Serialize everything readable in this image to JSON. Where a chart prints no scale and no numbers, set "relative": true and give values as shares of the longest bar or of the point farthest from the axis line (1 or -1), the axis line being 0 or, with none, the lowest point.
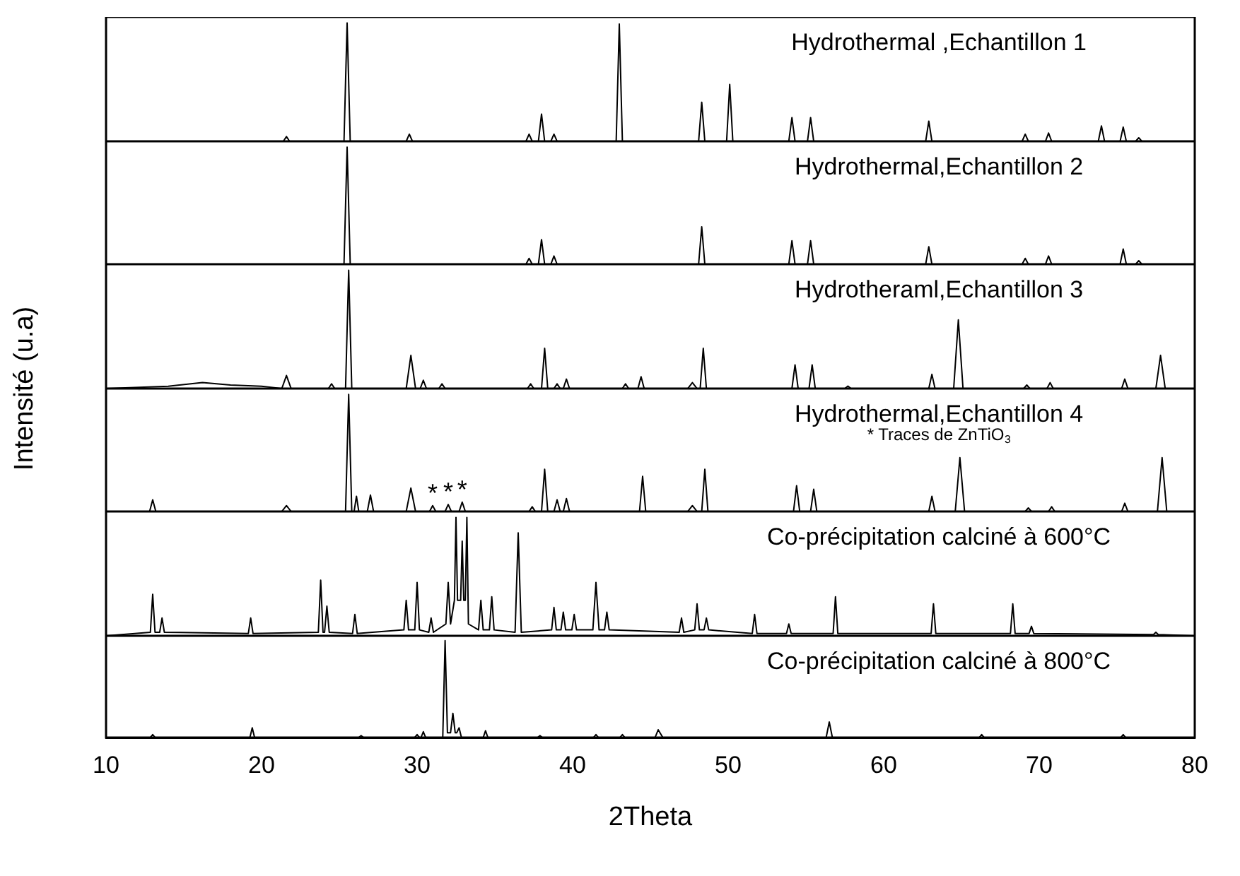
{
  "chart_data": [
    {
      "type": "line",
      "relative": true,
      "color": "#000000",
      "xlim": [
        10,
        80
      ],
      "tick_labels": false,
      "annotations": [
        "Hydrothermal ,Echantillon 1"
      ],
      "x": [
        10,
        21.4,
        21.6,
        21.8,
        25.3,
        25.5,
        25.7,
        29.3,
        29.5,
        29.7,
        37.0,
        37.2,
        37.4,
        37.8,
        38.0,
        38.2,
        38.6,
        38.8,
        39.0,
        42.8,
        43.0,
        43.2,
        48.1,
        48.3,
        48.5,
        49.9,
        50.1,
        50.3,
        53.9,
        54.1,
        54.3,
        55.1,
        55.3,
        55.5,
        62.7,
        62.9,
        63.1,
        68.9,
        69.1,
        69.3,
        70.4,
        70.6,
        70.8,
        73.8,
        74.0,
        74.2,
        75.2,
        75.4,
        75.6,
        76.2,
        76.4,
        76.6,
        80
      ],
      "values": [
        0,
        0,
        0.04,
        0,
        0,
        1,
        0,
        0,
        0.06,
        0,
        0,
        0.06,
        0,
        0,
        0.23,
        0,
        0,
        0.06,
        0,
        0,
        0.99,
        0,
        0,
        0.33,
        0,
        0,
        0.48,
        0,
        0,
        0.2,
        0,
        0,
        0.2,
        0,
        0,
        0.17,
        0,
        0,
        0.06,
        0,
        0,
        0.07,
        0,
        0,
        0.13,
        0,
        0,
        0.12,
        0,
        0,
        0.03,
        0,
        0
      ]
    },
    {
      "type": "line",
      "relative": true,
      "color": "#000000",
      "xlim": [
        10,
        80
      ],
      "tick_labels": false,
      "annotations": [
        "Hydrothermal,Echantillon 2"
      ],
      "x": [
        10,
        25.3,
        25.5,
        25.7,
        37.0,
        37.2,
        37.4,
        37.8,
        38.0,
        38.2,
        38.6,
        38.8,
        39.0,
        48.1,
        48.3,
        48.5,
        53.9,
        54.1,
        54.3,
        55.1,
        55.3,
        55.5,
        62.7,
        62.9,
        63.1,
        68.9,
        69.1,
        69.3,
        70.4,
        70.6,
        70.8,
        75.2,
        75.4,
        75.6,
        76.2,
        76.4,
        76.6,
        80
      ],
      "values": [
        0,
        0,
        1,
        0,
        0,
        0.05,
        0,
        0,
        0.21,
        0,
        0,
        0.07,
        0,
        0,
        0.32,
        0,
        0,
        0.2,
        0,
        0,
        0.2,
        0,
        0,
        0.15,
        0,
        0,
        0.05,
        0,
        0,
        0.07,
        0,
        0,
        0.13,
        0,
        0,
        0.03,
        0,
        0
      ]
    },
    {
      "type": "line",
      "relative": true,
      "color": "#000000",
      "xlim": [
        10,
        80
      ],
      "tick_labels": false,
      "ylabel": "Intensité (u.a)",
      "annotations": [
        "Hydrotheraml,Echantillon 3"
      ],
      "x": [
        10,
        14,
        16.2,
        18,
        20,
        21.3,
        21.6,
        21.9,
        24.3,
        24.5,
        24.7,
        25.4,
        25.6,
        25.8,
        29.3,
        29.6,
        29.9,
        30.2,
        30.4,
        30.6,
        31.4,
        31.6,
        31.8,
        37.1,
        37.3,
        37.5,
        38.0,
        38.2,
        38.4,
        38.8,
        39.0,
        39.2,
        39.4,
        39.6,
        39.8,
        43.2,
        43.4,
        43.6,
        44.2,
        44.4,
        44.6,
        47.4,
        47.7,
        48.0,
        48.2,
        48.4,
        48.6,
        54.1,
        54.3,
        54.5,
        55.2,
        55.4,
        55.6,
        57.5,
        57.7,
        57.9,
        62.9,
        63.1,
        63.3,
        64.5,
        64.8,
        65.1,
        69.0,
        69.2,
        69.4,
        70.5,
        70.7,
        70.9,
        75.3,
        75.5,
        75.7,
        77.5,
        77.8,
        78.1,
        80
      ],
      "values": [
        0,
        0.02,
        0.05,
        0.03,
        0.02,
        0,
        0.11,
        0,
        0,
        0.04,
        0,
        0,
        1,
        0,
        0,
        0.28,
        0,
        0,
        0.07,
        0,
        0,
        0.04,
        0,
        0,
        0.04,
        0,
        0,
        0.34,
        0,
        0,
        0.04,
        0,
        0,
        0.08,
        0,
        0,
        0.04,
        0,
        0,
        0.1,
        0,
        0,
        0.05,
        0,
        0,
        0.34,
        0,
        0,
        0.2,
        0,
        0,
        0.2,
        0,
        0,
        0.02,
        0,
        0,
        0.12,
        0,
        0,
        0.58,
        0,
        0,
        0.03,
        0,
        0,
        0.05,
        0,
        0,
        0.08,
        0,
        0,
        0.28,
        0,
        0
      ]
    },
    {
      "type": "line",
      "relative": true,
      "color": "#000000",
      "xlim": [
        10,
        80
      ],
      "tick_labels": false,
      "annotations": [
        "Hydrothermal,Echantillon 4",
        "* Traces de ZnTiO$_{3}$",
        {
          "text": "*",
          "x": 31.0,
          "y": 0.05
        },
        {
          "text": "*",
          "x": 32.0,
          "y": 0.06
        },
        {
          "text": "*",
          "x": 32.9,
          "y": 0.08
        }
      ],
      "x": [
        10,
        12.8,
        13.0,
        13.2,
        21.3,
        21.6,
        21.9,
        25.4,
        25.6,
        25.8,
        25.95,
        26.1,
        26.25,
        26.8,
        27.0,
        27.2,
        29.3,
        29.6,
        29.9,
        30.8,
        31.0,
        31.2,
        31.8,
        32.0,
        32.2,
        32.7,
        32.9,
        33.1,
        37.2,
        37.4,
        37.6,
        38.0,
        38.2,
        38.4,
        38.8,
        39.0,
        39.2,
        39.4,
        39.6,
        39.8,
        44.3,
        44.5,
        44.7,
        47.4,
        47.7,
        48.0,
        48.3,
        48.5,
        48.7,
        54.2,
        54.4,
        54.6,
        55.3,
        55.5,
        55.7,
        62.9,
        63.1,
        63.3,
        64.6,
        64.9,
        65.2,
        69.1,
        69.3,
        69.5,
        70.6,
        70.8,
        71.0,
        75.3,
        75.5,
        75.7,
        77.6,
        77.9,
        78.2,
        80
      ],
      "values": [
        0,
        0,
        0.1,
        0,
        0,
        0.05,
        0,
        0,
        1,
        0,
        0,
        0.13,
        0,
        0,
        0.14,
        0,
        0,
        0.2,
        0,
        0,
        0.05,
        0,
        0,
        0.06,
        0,
        0,
        0.08,
        0,
        0,
        0.04,
        0,
        0,
        0.36,
        0,
        0,
        0.1,
        0,
        0,
        0.11,
        0,
        0,
        0.3,
        0,
        0,
        0.05,
        0,
        0,
        0.36,
        0,
        0,
        0.22,
        0,
        0,
        0.19,
        0,
        0,
        0.13,
        0,
        0,
        0.46,
        0,
        0,
        0.03,
        0,
        0,
        0.04,
        0,
        0,
        0.07,
        0,
        0,
        0.46,
        0,
        0
      ]
    },
    {
      "type": "line",
      "relative": true,
      "color": "#000000",
      "xlim": [
        10,
        80
      ],
      "tick_labels": false,
      "annotations": [
        "Co-précipitation calciné à 600°C"
      ],
      "x": [
        10,
        12.85,
        13.0,
        13.15,
        13.45,
        13.6,
        13.75,
        19.15,
        19.3,
        19.45,
        23.65,
        23.8,
        23.95,
        24.05,
        24.2,
        24.35,
        25.85,
        26.0,
        26.15,
        29.15,
        29.3,
        29.45,
        29.85,
        30.0,
        30.15,
        30.75,
        30.9,
        31.05,
        31.85,
        32.0,
        32.15,
        32.4,
        32.5,
        32.6,
        32.8,
        32.9,
        33.0,
        33.1,
        33.2,
        33.3,
        33.95,
        34.1,
        34.25,
        34.65,
        34.8,
        34.95,
        36.3,
        36.5,
        36.7,
        38.65,
        38.8,
        38.95,
        39.25,
        39.4,
        39.55,
        39.95,
        40.1,
        40.25,
        41.3,
        41.5,
        41.7,
        42.05,
        42.2,
        42.35,
        46.85,
        47.0,
        47.15,
        47.85,
        48.0,
        48.15,
        48.45,
        48.6,
        48.75,
        51.55,
        51.7,
        51.85,
        53.75,
        53.9,
        54.05,
        56.75,
        56.9,
        57.05,
        63.05,
        63.2,
        63.35,
        68.15,
        68.3,
        68.45,
        69.35,
        69.5,
        69.65,
        77.35,
        77.5,
        77.65,
        80
      ],
      "values": [
        0,
        0.03,
        0.35,
        0.03,
        0.03,
        0.15,
        0.03,
        0.02,
        0.15,
        0.02,
        0.03,
        0.47,
        0.03,
        0.03,
        0.25,
        0.03,
        0.02,
        0.18,
        0.02,
        0.05,
        0.3,
        0.05,
        0.05,
        0.45,
        0.05,
        0.03,
        0.15,
        0.03,
        0.1,
        0.45,
        0.1,
        0.3,
        1,
        0.3,
        0.3,
        0.8,
        0.3,
        0.3,
        1,
        0.1,
        0.05,
        0.3,
        0.05,
        0.05,
        0.33,
        0.05,
        0.03,
        0.87,
        0.03,
        0.05,
        0.24,
        0.05,
        0.05,
        0.2,
        0.05,
        0.05,
        0.18,
        0.05,
        0.05,
        0.45,
        0.05,
        0.05,
        0.2,
        0.05,
        0.03,
        0.15,
        0.03,
        0.05,
        0.27,
        0.05,
        0.05,
        0.15,
        0.05,
        0.02,
        0.18,
        0.02,
        0.02,
        0.1,
        0.02,
        0.02,
        0.33,
        0.02,
        0.02,
        0.27,
        0.02,
        0.02,
        0.27,
        0.02,
        0.02,
        0.08,
        0.02,
        0.01,
        0.03,
        0.01,
        0
      ]
    },
    {
      "type": "line",
      "relative": true,
      "color": "#000000",
      "xlim": [
        10,
        80
      ],
      "xticks": [
        10,
        20,
        30,
        40,
        50,
        60,
        70,
        80
      ],
      "tick_labels": "x",
      "xlabel": "2Theta",
      "annotations": [
        "Co-précipitation calciné à 800°C"
      ],
      "x": [
        10,
        12.85,
        13.0,
        13.15,
        19.25,
        19.4,
        19.55,
        26.25,
        26.4,
        26.55,
        29.85,
        30.0,
        30.15,
        30.25,
        30.4,
        30.55,
        31.65,
        31.8,
        31.95,
        32.15,
        32.3,
        32.45,
        32.55,
        32.7,
        32.85,
        34.25,
        34.4,
        34.55,
        37.75,
        37.9,
        38.05,
        41.35,
        41.5,
        41.65,
        43.05,
        43.2,
        43.35,
        45.3,
        45.5,
        45.8,
        56.3,
        56.5,
        56.7,
        66.15,
        66.3,
        66.45,
        75.25,
        75.4,
        75.55,
        80
      ],
      "values": [
        0,
        0,
        0.03,
        0,
        0,
        0.1,
        0,
        0,
        0.02,
        0,
        0,
        0.03,
        0,
        0,
        0.06,
        0,
        0,
        1,
        0.05,
        0.05,
        0.25,
        0.05,
        0.05,
        0.1,
        0,
        0,
        0.07,
        0,
        0,
        0.02,
        0,
        0,
        0.03,
        0,
        0,
        0.03,
        0,
        0,
        0.08,
        0,
        0,
        0.16,
        0,
        0,
        0.03,
        0,
        0,
        0.03,
        0,
        0
      ]
    }
  ]
}
